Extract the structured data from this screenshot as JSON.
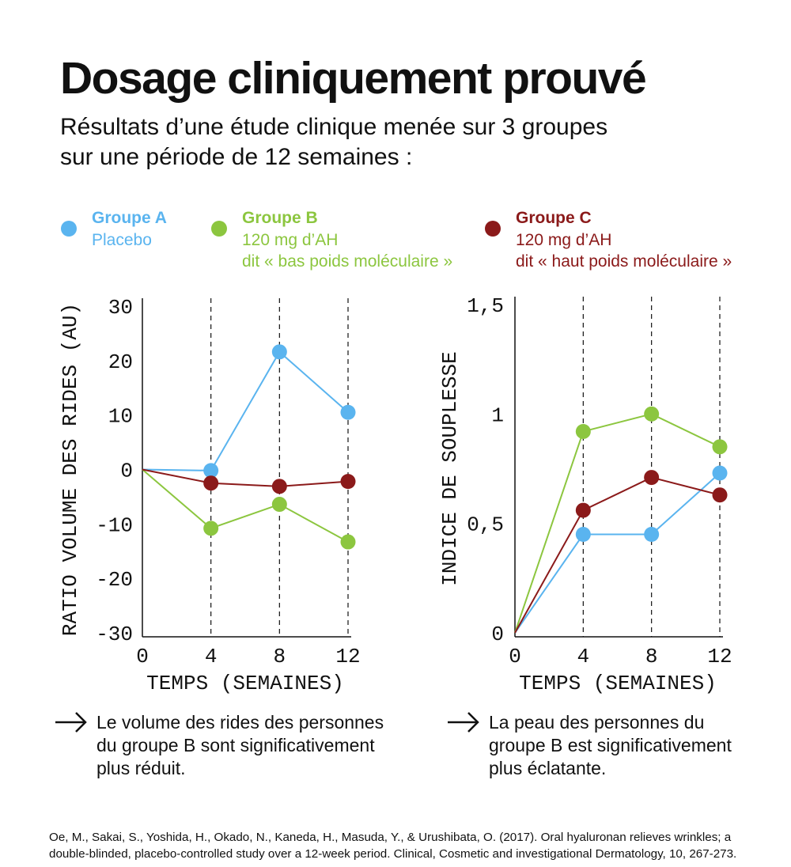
{
  "title": "Dosage cliniquement prouvé",
  "subtitle": [
    "Résultats d’une étude clinique menée sur 3 groupes",
    "sur une période de 12 semaines :"
  ],
  "chart_data": [
    {
      "type": "line",
      "ylabel": "RATIO VOLUME DES RIDES (AU)",
      "xlabel": "TEMPS (SEMAINES)",
      "x": [
        0,
        4,
        8,
        12
      ],
      "xlim": [
        0,
        12
      ],
      "xticks": [
        0,
        4,
        8,
        12
      ],
      "ylim": [
        -30,
        30
      ],
      "yticks": [
        -30,
        -20,
        -10,
        0,
        10,
        20,
        30
      ],
      "grid": "x",
      "series": [
        {
          "name": "Groupe A",
          "description": [
            "Placebo"
          ],
          "color": "#5ab4ef",
          "values": [
            0,
            -0.2,
            21.6,
            10.5
          ]
        },
        {
          "name": "Groupe B",
          "description": [
            "120 mg d’AH",
            "dit « bas poids moléculaire »"
          ],
          "color": "#8cc63f",
          "values": [
            0,
            -10.8,
            -6.4,
            -13.3
          ]
        },
        {
          "name": "Groupe C",
          "description": [
            "120 mg d’AH",
            "dit « haut poids moléculaire »"
          ],
          "color": "#8b1a1a",
          "values": [
            0,
            -2.5,
            -3.1,
            -2.2
          ]
        }
      ],
      "conclusion": [
        "Le volume des rides des personnes",
        "du groupe B sont significativement",
        "plus réduit."
      ]
    },
    {
      "type": "line",
      "ylabel": "INDICE DE SOUPLESSE",
      "xlabel": "TEMPS (SEMAINES)",
      "x": [
        0,
        4,
        8,
        12
      ],
      "xlim": [
        0,
        12
      ],
      "xticks": [
        0,
        4,
        8,
        12
      ],
      "ylim": [
        0,
        1.5
      ],
      "yticks": [
        0,
        {
          "value": 0.5,
          "label": "0,5"
        },
        1,
        {
          "value": 1.5,
          "label": "1,5"
        }
      ],
      "grid": "x",
      "series": [
        {
          "color": "#5ab4ef",
          "values": [
            0,
            0.45,
            0.45,
            0.73
          ]
        },
        {
          "color": "#8cc63f",
          "values": [
            0,
            0.92,
            1.0,
            0.85
          ]
        },
        {
          "color": "#8b1a1a",
          "values": [
            0,
            0.56,
            0.71,
            0.63
          ]
        }
      ],
      "conclusion": [
        "La peau des personnes du",
        "groupe B est significativement",
        "plus éclatante."
      ]
    }
  ],
  "citation": [
    "Oe, M., Sakai, S., Yoshida, H., Okado, N., Kaneda, H., Masuda, Y., & Urushibata, O. (2017). Oral hyaluronan relieves wrinkles; a",
    "double-blinded, placebo-controlled study over a 12-week period. Clinical, Cosmetic and investigational Dermatology, 10, 267-273."
  ]
}
